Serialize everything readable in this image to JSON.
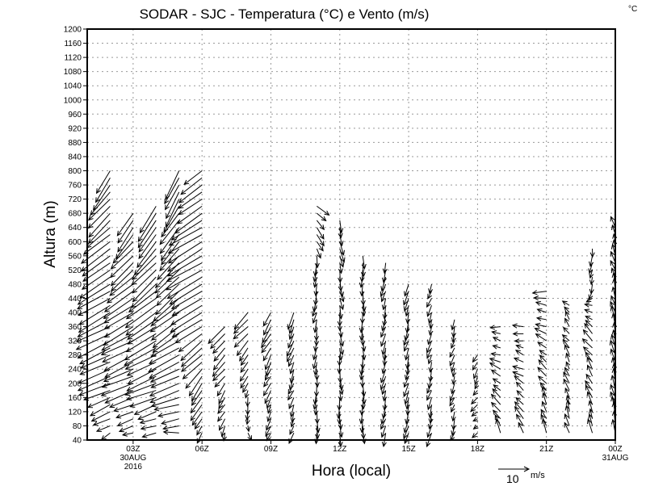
{
  "chart_data": {
    "type": "vector",
    "title": "SODAR - SJC - Temperatura (°C) e Vento (m/s)",
    "corner_label": "°C",
    "xlabel": "Hora (local)",
    "ylabel": "Altura (m)",
    "ylim": [
      40,
      1200
    ],
    "ytick_step": 40,
    "xlim_hours": [
      1,
      24
    ],
    "xticks": [
      {
        "hour": 3,
        "label": "03Z",
        "sub": [
          "30AUG",
          "2016"
        ]
      },
      {
        "hour": 6,
        "label": "06Z",
        "sub": []
      },
      {
        "hour": 9,
        "label": "09Z",
        "sub": []
      },
      {
        "hour": 12,
        "label": "12Z",
        "sub": []
      },
      {
        "hour": 15,
        "label": "15Z",
        "sub": []
      },
      {
        "hour": 18,
        "label": "18Z",
        "sub": []
      },
      {
        "hour": 21,
        "label": "21Z",
        "sub": []
      },
      {
        "hour": 24,
        "label": "00Z",
        "sub": [
          "31AUG"
        ]
      }
    ],
    "grid": true,
    "reference_vector": {
      "value": 10,
      "label": "10",
      "unit": "m/s"
    },
    "level_step_m": 20,
    "columns": [
      {
        "hour": 2,
        "top": 800,
        "profile": [
          [
            60,
            -3,
            -2
          ],
          [
            200,
            -10,
            -4
          ],
          [
            400,
            -11,
            -6
          ],
          [
            600,
            -9,
            -7
          ],
          [
            800,
            -5,
            -8
          ]
        ]
      },
      {
        "hour": 3,
        "top": 680,
        "profile": [
          [
            60,
            -3,
            -1
          ],
          [
            200,
            -10,
            -4
          ],
          [
            400,
            -10,
            -6
          ],
          [
            680,
            -5,
            -8
          ]
        ]
      },
      {
        "hour": 4,
        "top": 700,
        "profile": [
          [
            60,
            -4,
            -1
          ],
          [
            200,
            -10,
            -4
          ],
          [
            400,
            -10,
            -7
          ],
          [
            700,
            -5,
            -9
          ]
        ]
      },
      {
        "hour": 5,
        "top": 800,
        "profile": [
          [
            60,
            -5,
            0
          ],
          [
            200,
            -10,
            -4
          ],
          [
            400,
            -9,
            -7
          ],
          [
            800,
            -4,
            -9
          ]
        ]
      },
      {
        "hour": 6,
        "top": 800,
        "profile": [
          [
            60,
            -2,
            -3
          ],
          [
            200,
            -4,
            -6
          ],
          [
            400,
            -10,
            -6
          ],
          [
            580,
            -12,
            -7
          ],
          [
            800,
            -6,
            -5
          ]
        ]
      },
      {
        "hour": 7,
        "top": 360,
        "profile": [
          [
            60,
            -1,
            -3
          ],
          [
            360,
            -5,
            -5
          ]
        ]
      },
      {
        "hour": 8,
        "top": 400,
        "profile": [
          [
            60,
            1,
            -2
          ],
          [
            400,
            -5,
            -5
          ]
        ]
      },
      {
        "hour": 9,
        "top": 400,
        "profile": [
          [
            60,
            -1,
            -3
          ],
          [
            400,
            -3,
            -5
          ]
        ]
      },
      {
        "hour": 10,
        "top": 400,
        "profile": [
          [
            60,
            -1,
            -3
          ],
          [
            400,
            -2,
            -5
          ]
        ]
      },
      {
        "hour": 11,
        "top": 700,
        "profile": [
          [
            60,
            0,
            -4
          ],
          [
            500,
            -1,
            -4
          ],
          [
            700,
            4,
            -3
          ]
        ]
      },
      {
        "hour": 12,
        "top": 660,
        "profile": [
          [
            60,
            0,
            -4
          ],
          [
            660,
            1,
            -4
          ]
        ]
      },
      {
        "hour": 13,
        "top": 560,
        "profile": [
          [
            60,
            0,
            -4
          ],
          [
            560,
            0,
            -4
          ]
        ]
      },
      {
        "hour": 14,
        "top": 540,
        "profile": [
          [
            60,
            -1,
            -4
          ],
          [
            540,
            -1,
            -4
          ]
        ]
      },
      {
        "hour": 15,
        "top": 480,
        "profile": [
          [
            60,
            -1,
            -4
          ],
          [
            480,
            -1,
            -4
          ]
        ]
      },
      {
        "hour": 16,
        "top": 480,
        "profile": [
          [
            60,
            -1,
            -4
          ],
          [
            480,
            -1,
            -3
          ]
        ]
      },
      {
        "hour": 17,
        "top": 380,
        "profile": [
          [
            60,
            -1,
            -3
          ],
          [
            380,
            -1,
            -3
          ]
        ]
      },
      {
        "hour": 18,
        "top": 290,
        "profile": [
          [
            60,
            -2,
            -1
          ],
          [
            290,
            -1,
            -3
          ]
        ]
      },
      {
        "hour": 19,
        "top": 370,
        "profile": [
          [
            60,
            -2,
            4
          ],
          [
            200,
            -3,
            2
          ],
          [
            370,
            -3,
            0
          ]
        ]
      },
      {
        "hour": 20,
        "top": 360,
        "profile": [
          [
            60,
            -2,
            4
          ],
          [
            200,
            -3,
            2
          ],
          [
            360,
            -3,
            0
          ]
        ]
      },
      {
        "hour": 21,
        "top": 460,
        "profile": [
          [
            60,
            -1,
            4
          ],
          [
            300,
            -3,
            2
          ],
          [
            460,
            -4,
            0
          ]
        ]
      },
      {
        "hour": 22,
        "top": 420,
        "profile": [
          [
            60,
            -1,
            4
          ],
          [
            420,
            -2,
            2
          ]
        ]
      },
      {
        "hour": 23,
        "top": 580,
        "profile": [
          [
            60,
            -1,
            4
          ],
          [
            350,
            -3,
            3
          ],
          [
            480,
            -1,
            -3
          ],
          [
            580,
            0,
            -3
          ]
        ]
      },
      {
        "hour": 24,
        "top": 640,
        "profile": [
          [
            60,
            -1,
            5
          ],
          [
            640,
            -1,
            3
          ]
        ]
      }
    ]
  }
}
